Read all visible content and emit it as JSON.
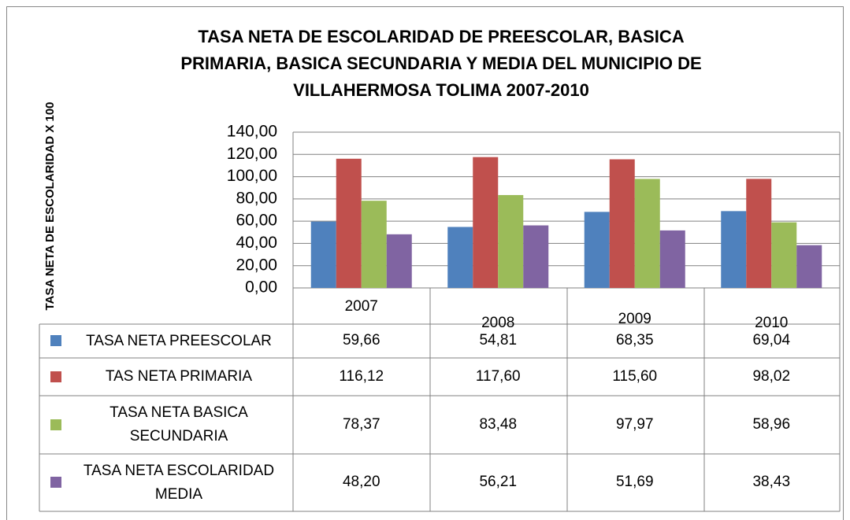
{
  "chart_data": {
    "type": "bar",
    "title": "TASA NETA DE ESCOLARIDAD DE PREESCOLAR, BASICA\nPRIMARIA, BASICA SECUNDARIA Y MEDIA DEL MUNICIPIO DE\nVILLAHERMOSA TOLIMA 2007-2010",
    "y_label": "TASA NETA DE ESCOLARIDAD X 100",
    "categories": [
      "2007",
      "2008",
      "2009",
      "2010"
    ],
    "series": [
      {
        "name": "TASA NETA PREESCOLAR",
        "color": "#4f81bd",
        "values": [
          59.66,
          54.81,
          68.35,
          69.04
        ],
        "value_labels": [
          "59,66",
          "54,81",
          "68,35",
          "69,04"
        ]
      },
      {
        "name": "TAS NETA PRIMARIA",
        "color": "#c0504d",
        "values": [
          116.12,
          117.6,
          115.6,
          98.02
        ],
        "value_labels": [
          "116,12",
          "117,60",
          "115,60",
          "98,02"
        ]
      },
      {
        "name": "TASA NETA BASICA SECUNDARIA",
        "color": "#9bbb59",
        "values": [
          78.37,
          83.48,
          97.97,
          58.96
        ],
        "value_labels": [
          "78,37",
          "83,48",
          "97,97",
          "58,96"
        ]
      },
      {
        "name": "TASA NETA ESCOLARIDAD MEDIA",
        "color": "#8064a2",
        "values": [
          48.2,
          56.21,
          51.69,
          38.43
        ],
        "value_labels": [
          "48,20",
          "56,21",
          "51,69",
          "38,43"
        ]
      }
    ],
    "ylim": [
      0,
      140
    ],
    "yticks": [
      {
        "value": 0,
        "label": "0,00"
      },
      {
        "value": 20,
        "label": "20,00"
      },
      {
        "value": 40,
        "label": "40,00"
      },
      {
        "value": 60,
        "label": "60,00"
      },
      {
        "value": 80,
        "label": "80,00"
      },
      {
        "value": 100,
        "label": "100,00"
      },
      {
        "value": 120,
        "label": "120,00"
      },
      {
        "value": 140,
        "label": "140,00"
      }
    ],
    "grid": true,
    "data_table": true
  }
}
